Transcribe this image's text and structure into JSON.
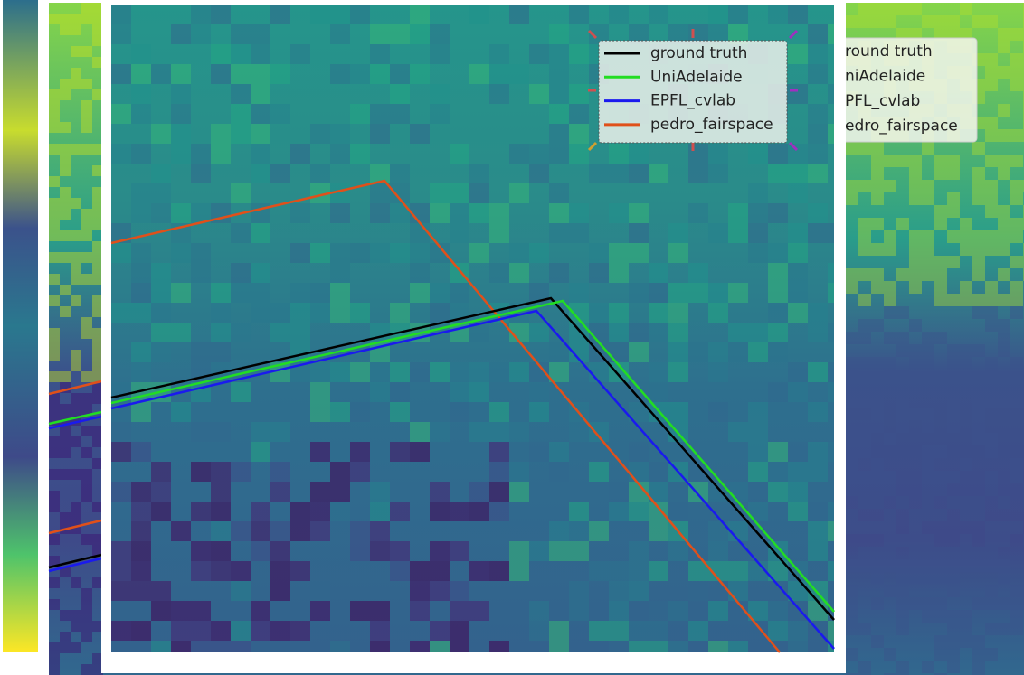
{
  "back_legend": {
    "entries": [
      {
        "label": "round truth"
      },
      {
        "label": "niAdelaide"
      },
      {
        "label": "PFL_cvlab"
      },
      {
        "label": "edro_fairspace"
      }
    ]
  },
  "front_legend": {
    "entries": [
      {
        "label": "ground truth",
        "color": "#000000"
      },
      {
        "label": "UniAdelaide",
        "color": "#22dd22"
      },
      {
        "label": "EPFL_cvlab",
        "color": "#1a1aee"
      },
      {
        "label": "pedro_fairspace",
        "color": "#e0501a"
      }
    ]
  }
}
